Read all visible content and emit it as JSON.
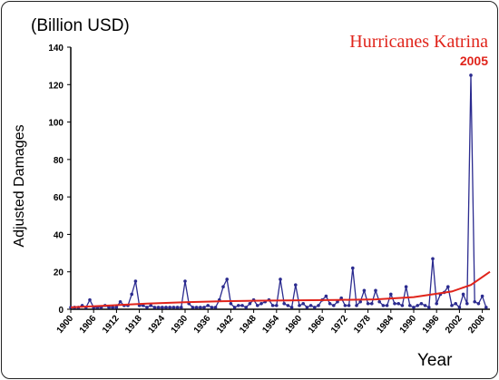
{
  "chart_data": {
    "type": "line",
    "unit_label": "(Billion USD)",
    "ylabel": "Adjusted Damages",
    "xlabel": "Year",
    "ylim": [
      0,
      140
    ],
    "y_ticks": [
      "0",
      "20",
      "40",
      "60",
      "80",
      "100",
      "120",
      "140"
    ],
    "xlim": [
      1900,
      2010
    ],
    "x_ticks": [
      "1900",
      "1906",
      "1912",
      "1918",
      "1924",
      "1930",
      "1936",
      "1942",
      "1948",
      "1954",
      "1960",
      "1966",
      "1972",
      "1978",
      "1984",
      "1990",
      "1996",
      "2002",
      "2008"
    ],
    "annotation": {
      "title": "Hurricanes Katrina",
      "year": "2005"
    },
    "colors": {
      "series": "#2b2b8f",
      "trend": "#e0241b"
    },
    "series": [
      {
        "x": [
          1900,
          1901,
          1902,
          1903,
          1904,
          1905,
          1906,
          1907,
          1908,
          1909,
          1910,
          1911,
          1912,
          1913,
          1914,
          1915,
          1916,
          1917,
          1918,
          1919,
          1920,
          1921,
          1922,
          1923,
          1924,
          1925,
          1926,
          1927,
          1928,
          1929,
          1930,
          1931,
          1932,
          1933,
          1934,
          1935,
          1936,
          1937,
          1938,
          1939,
          1940,
          1941,
          1942,
          1943,
          1944,
          1945,
          1946,
          1947,
          1948,
          1949,
          1950,
          1951,
          1952,
          1953,
          1954,
          1955,
          1956,
          1957,
          1958,
          1959,
          1960,
          1961,
          1962,
          1963,
          1964,
          1965,
          1966,
          1967,
          1968,
          1969,
          1970,
          1971,
          1972,
          1973,
          1974,
          1975,
          1976,
          1977,
          1978,
          1979,
          1980,
          1981,
          1982,
          1983,
          1984,
          1985,
          1986,
          1987,
          1988,
          1989,
          1990,
          1991,
          1992,
          1993,
          1994,
          1995,
          1996,
          1997,
          1998,
          1999,
          2000,
          2001,
          2002,
          2003,
          2004,
          2005,
          2006,
          2007,
          2008,
          2009
        ],
        "values": [
          1,
          1,
          1,
          2,
          1,
          5,
          1,
          1,
          1,
          2,
          1,
          1,
          1,
          4,
          2,
          2,
          8,
          15,
          2,
          2,
          1,
          2,
          1,
          1,
          1,
          1,
          1,
          1,
          1,
          1,
          15,
          3,
          1,
          1,
          1,
          1,
          2,
          1,
          1,
          5,
          12,
          16,
          3,
          1,
          2,
          2,
          1,
          3,
          5,
          2,
          3,
          4,
          5,
          2,
          2,
          16,
          3,
          2,
          1,
          13,
          2,
          3,
          1,
          2,
          1,
          2,
          5,
          7,
          3,
          2,
          4,
          6,
          2,
          2,
          22,
          2,
          4,
          10,
          3,
          3,
          10,
          4,
          2,
          2,
          8,
          3,
          3,
          2,
          12,
          2,
          1,
          2,
          3,
          2,
          1,
          27,
          3,
          8,
          9,
          12,
          2,
          3,
          1,
          8,
          3,
          125,
          4,
          3,
          7,
          1
        ]
      }
    ],
    "trend": {
      "x": [
        1900,
        1910,
        1920,
        1930,
        1940,
        1950,
        1960,
        1970,
        1980,
        1990,
        2000,
        2005,
        2010
      ],
      "values": [
        1,
        2,
        3,
        3.8,
        4.3,
        4.6,
        4.8,
        5,
        5.3,
        6.5,
        9.5,
        13,
        20
      ]
    }
  }
}
